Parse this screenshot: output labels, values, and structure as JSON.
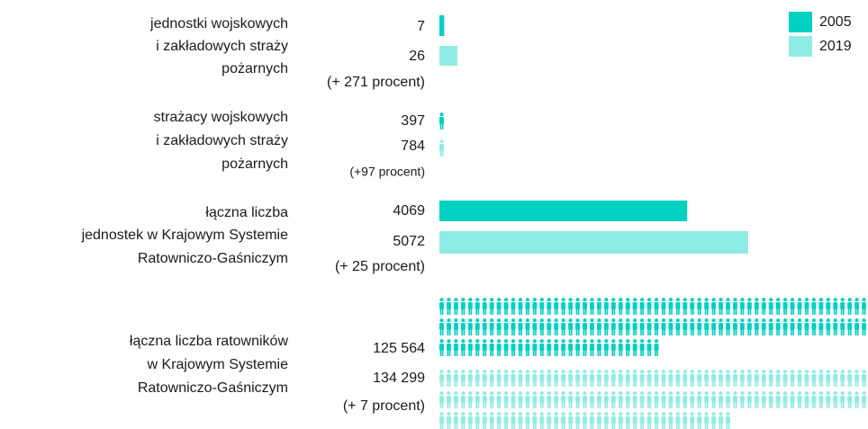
{
  "chart_data": {
    "type": "infographic",
    "legend": [
      {
        "name": "2005",
        "color": "#00d1c1"
      },
      {
        "name": "2019",
        "color": "#8fece4"
      }
    ],
    "groups": [
      {
        "label": [
          "jednostki wojskowych",
          "i zakładowych straży",
          "pożarnych"
        ],
        "values": [
          7,
          26
        ],
        "value_labels": [
          "7",
          "26"
        ],
        "change": "(+ 271 procent)"
      },
      {
        "label": [
          "strażacy wojskowych",
          "i zakładowych straży",
          "pożarnych"
        ],
        "values": [
          397,
          784
        ],
        "value_labels": [
          "397",
          "784"
        ],
        "change": "(+97 procent)"
      },
      {
        "label": [
          "łączna liczba",
          "jednostek w Krajowym Systemie",
          "Ratowniczo-Gaśniczym"
        ],
        "values": [
          4069,
          5072
        ],
        "value_labels": [
          "4069",
          "5072"
        ],
        "change": "(+ 25 procent)"
      },
      {
        "label": [
          "łączna liczba ratowników",
          "w Krajowym Systemie",
          "Ratowniczo-Gaśniczym"
        ],
        "values": [
          125564,
          134299
        ],
        "value_labels": [
          "125 564",
          "134 299"
        ],
        "change": "(+ 7 procent)"
      }
    ]
  }
}
